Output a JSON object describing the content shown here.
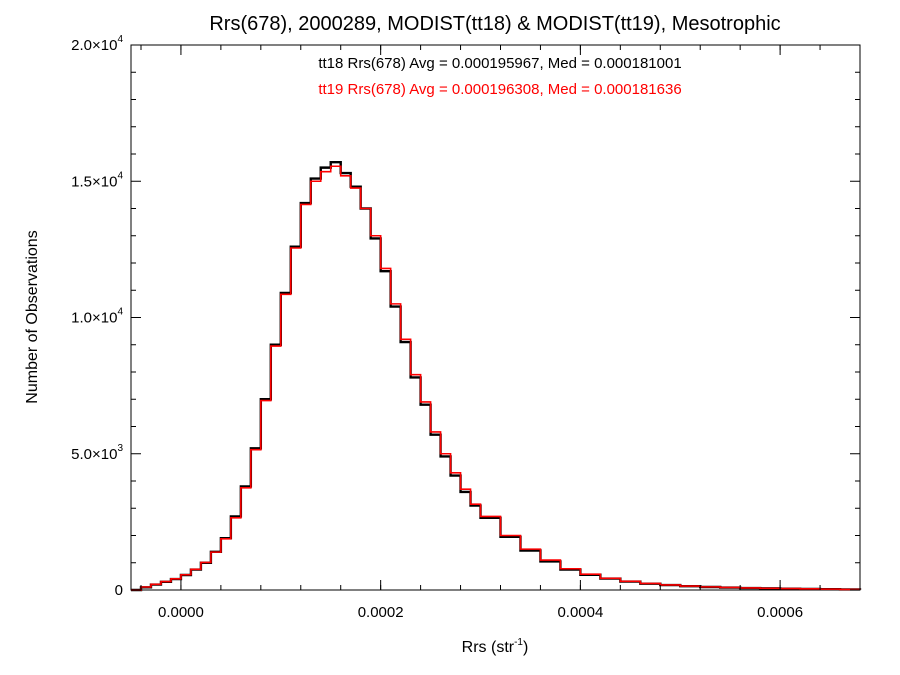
{
  "chart_data": {
    "type": "line",
    "title": "Rrs(678), 2000289, MODIST(tt18) & MODIST(tt19), Mesotrophic",
    "xlabel": {
      "base": "Rrs (str",
      "exp": "-1",
      "close": ")"
    },
    "ylabel": "Number of Observations",
    "xlim": [
      -5e-05,
      0.00068
    ],
    "ylim": [
      0,
      20000
    ],
    "x_ticks": [
      {
        "value": 0.0,
        "label": "0.0000"
      },
      {
        "value": 0.0002,
        "label": "0.0002"
      },
      {
        "value": 0.0004,
        "label": "0.0004"
      },
      {
        "value": 0.0006,
        "label": "0.0006"
      }
    ],
    "y_ticks": [
      {
        "value": 0,
        "mant": "0",
        "exp": ""
      },
      {
        "value": 5000,
        "mant": "5.0×10",
        "exp": "3"
      },
      {
        "value": 10000,
        "mant": "1.0×10",
        "exp": "4"
      },
      {
        "value": 15000,
        "mant": "1.5×10",
        "exp": "4"
      },
      {
        "value": 20000,
        "mant": "2.0×10",
        "exp": "4"
      }
    ],
    "grid": false,
    "annotations": [
      {
        "text": "tt18 Rrs(678) Avg = 0.000195967, Med = 0.000181001",
        "color": "#000000"
      },
      {
        "text": "tt19 Rrs(678) Avg = 0.000196308, Med = 0.000181636",
        "color": "#ff0000"
      }
    ],
    "series": [
      {
        "color": "#000000",
        "x": [
          -5e-05,
          -4e-05,
          -3e-05,
          -2e-05,
          -1e-05,
          0.0,
          1e-05,
          2e-05,
          3e-05,
          4e-05,
          5e-05,
          6e-05,
          7e-05,
          8e-05,
          9e-05,
          0.0001,
          0.00011,
          0.00012,
          0.00013,
          0.00014,
          0.00015,
          0.00016,
          0.00017,
          0.00018,
          0.00019,
          0.0002,
          0.00021,
          0.00022,
          0.00023,
          0.00024,
          0.00025,
          0.00026,
          0.00027,
          0.00028,
          0.00029,
          0.0003,
          0.00032,
          0.00034,
          0.00036,
          0.00038,
          0.0004,
          0.00042,
          0.00044,
          0.00046,
          0.00048,
          0.0005,
          0.00052,
          0.00054,
          0.00056,
          0.00058,
          0.0006,
          0.00062,
          0.00064,
          0.00066,
          0.00068
        ],
        "y": [
          0,
          100,
          200,
          300,
          400,
          550,
          750,
          1000,
          1400,
          1900,
          2700,
          3800,
          5200,
          7000,
          9000,
          10900,
          12600,
          14200,
          15100,
          15500,
          15700,
          15300,
          14800,
          14000,
          12900,
          11700,
          10400,
          9100,
          7800,
          6800,
          5700,
          4900,
          4200,
          3600,
          3100,
          2650,
          1950,
          1450,
          1050,
          750,
          560,
          420,
          310,
          230,
          180,
          140,
          110,
          90,
          70,
          60,
          50,
          40,
          30,
          20,
          10
        ]
      },
      {
        "color": "#ff0000",
        "x": [
          -5e-05,
          -4e-05,
          -3e-05,
          -2e-05,
          -1e-05,
          0.0,
          1e-05,
          2e-05,
          3e-05,
          4e-05,
          5e-05,
          6e-05,
          7e-05,
          8e-05,
          9e-05,
          0.0001,
          0.00011,
          0.00012,
          0.00013,
          0.00014,
          0.00015,
          0.00016,
          0.00017,
          0.00018,
          0.00019,
          0.0002,
          0.00021,
          0.00022,
          0.00023,
          0.00024,
          0.00025,
          0.00026,
          0.00027,
          0.00028,
          0.00029,
          0.0003,
          0.00032,
          0.00034,
          0.00036,
          0.00038,
          0.0004,
          0.00042,
          0.00044,
          0.00046,
          0.00048,
          0.0005,
          0.00052,
          0.00054,
          0.00056,
          0.00058,
          0.0006,
          0.00062,
          0.00064,
          0.00066,
          0.00068
        ],
        "y": [
          0,
          110,
          210,
          310,
          410,
          560,
          760,
          1010,
          1390,
          1880,
          2650,
          3750,
          5150,
          6950,
          8950,
          10850,
          12550,
          14150,
          15000,
          15350,
          15550,
          15200,
          14750,
          14000,
          13000,
          11800,
          10500,
          9200,
          7900,
          6900,
          5800,
          5000,
          4300,
          3700,
          3150,
          2700,
          2000,
          1500,
          1100,
          780,
          580,
          430,
          320,
          240,
          185,
          145,
          115,
          95,
          75,
          62,
          52,
          42,
          32,
          22,
          12
        ]
      }
    ]
  }
}
